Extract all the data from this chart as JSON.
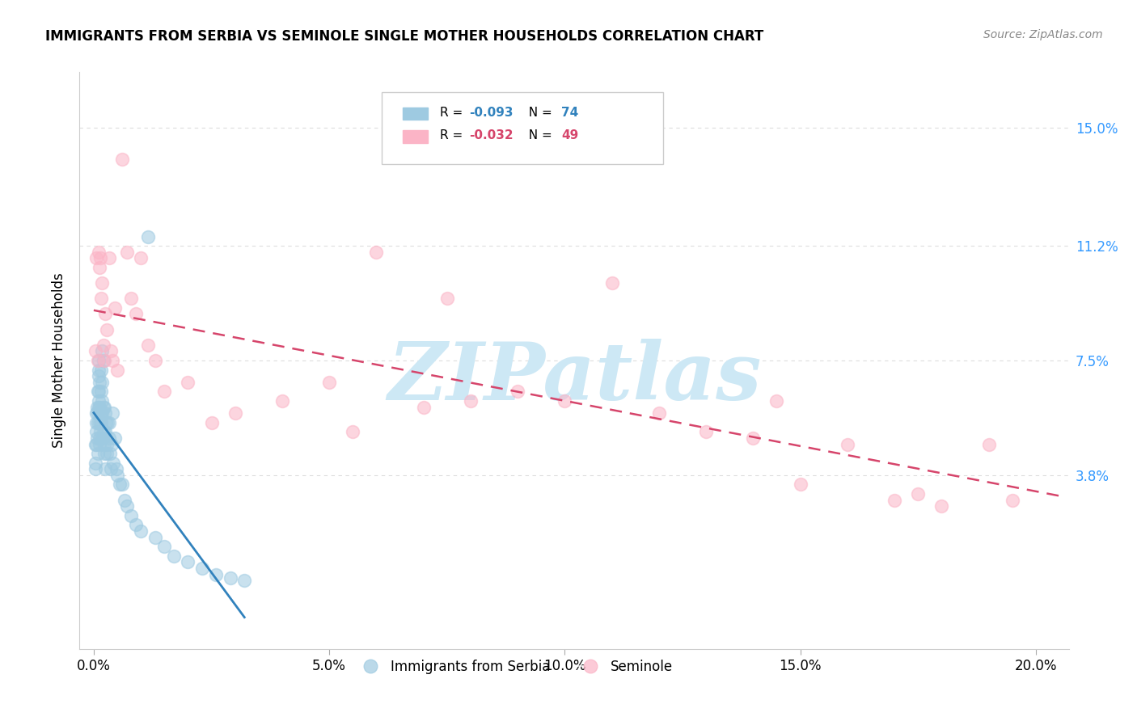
{
  "title": "IMMIGRANTS FROM SERBIA VS SEMINOLE SINGLE MOTHER HOUSEHOLDS CORRELATION CHART",
  "source": "Source: ZipAtlas.com",
  "ylabel": "Single Mother Households",
  "xlabel_ticks": [
    "0.0%",
    "5.0%",
    "10.0%",
    "15.0%",
    "20.0%"
  ],
  "xlabel_vals": [
    0.0,
    0.05,
    0.1,
    0.15,
    0.2
  ],
  "ylabel_ticks": [
    "3.8%",
    "7.5%",
    "11.2%",
    "15.0%"
  ],
  "ylabel_vals": [
    0.038,
    0.075,
    0.112,
    0.15
  ],
  "ylim": [
    -0.018,
    0.168
  ],
  "xlim": [
    -0.003,
    0.207
  ],
  "legend1_label": "Immigrants from Serbia",
  "legend2_label": "Seminole",
  "R1": "-0.093",
  "N1": "74",
  "R2": "-0.032",
  "N2": "49",
  "serbia_color": "#9ecae1",
  "seminole_color": "#fbb4c6",
  "serbia_line_color": "#3182bd",
  "seminole_line_color": "#d6456b",
  "serbia_x": [
    0.0003,
    0.0003,
    0.0004,
    0.0005,
    0.0005,
    0.0006,
    0.0006,
    0.0007,
    0.0007,
    0.0008,
    0.0008,
    0.0009,
    0.0009,
    0.001,
    0.001,
    0.001,
    0.001,
    0.0011,
    0.0011,
    0.0012,
    0.0012,
    0.0013,
    0.0013,
    0.0013,
    0.0014,
    0.0014,
    0.0015,
    0.0015,
    0.0015,
    0.0016,
    0.0017,
    0.0017,
    0.0018,
    0.0018,
    0.0019,
    0.002,
    0.002,
    0.0021,
    0.0022,
    0.0023,
    0.0023,
    0.0024,
    0.0025,
    0.0025,
    0.0026,
    0.0027,
    0.0028,
    0.003,
    0.0032,
    0.0033,
    0.0035,
    0.0036,
    0.0038,
    0.004,
    0.0042,
    0.0045,
    0.0048,
    0.005,
    0.0055,
    0.006,
    0.0065,
    0.007,
    0.008,
    0.009,
    0.01,
    0.0115,
    0.013,
    0.015,
    0.017,
    0.02,
    0.023,
    0.026,
    0.029,
    0.032
  ],
  "serbia_y": [
    0.048,
    0.042,
    0.04,
    0.058,
    0.055,
    0.052,
    0.048,
    0.06,
    0.05,
    0.065,
    0.058,
    0.045,
    0.055,
    0.075,
    0.07,
    0.065,
    0.06,
    0.072,
    0.062,
    0.055,
    0.05,
    0.068,
    0.06,
    0.048,
    0.058,
    0.052,
    0.072,
    0.065,
    0.055,
    0.058,
    0.078,
    0.062,
    0.068,
    0.058,
    0.05,
    0.075,
    0.06,
    0.052,
    0.06,
    0.048,
    0.045,
    0.058,
    0.052,
    0.04,
    0.055,
    0.048,
    0.045,
    0.055,
    0.05,
    0.055,
    0.045,
    0.04,
    0.048,
    0.058,
    0.042,
    0.05,
    0.04,
    0.038,
    0.035,
    0.035,
    0.03,
    0.028,
    0.025,
    0.022,
    0.02,
    0.115,
    0.018,
    0.015,
    0.012,
    0.01,
    0.008,
    0.006,
    0.005,
    0.004
  ],
  "seminole_x": [
    0.0003,
    0.0005,
    0.0008,
    0.001,
    0.0012,
    0.0014,
    0.0016,
    0.0018,
    0.002,
    0.0022,
    0.0025,
    0.0028,
    0.0032,
    0.0036,
    0.004,
    0.0045,
    0.005,
    0.006,
    0.007,
    0.008,
    0.009,
    0.01,
    0.0115,
    0.013,
    0.015,
    0.02,
    0.025,
    0.03,
    0.04,
    0.05,
    0.055,
    0.06,
    0.07,
    0.075,
    0.08,
    0.09,
    0.1,
    0.11,
    0.12,
    0.13,
    0.14,
    0.145,
    0.15,
    0.16,
    0.17,
    0.175,
    0.18,
    0.19,
    0.195
  ],
  "seminole_y": [
    0.078,
    0.108,
    0.075,
    0.11,
    0.105,
    0.108,
    0.095,
    0.1,
    0.08,
    0.075,
    0.09,
    0.085,
    0.108,
    0.078,
    0.075,
    0.092,
    0.072,
    0.14,
    0.11,
    0.095,
    0.09,
    0.108,
    0.08,
    0.075,
    0.065,
    0.068,
    0.055,
    0.058,
    0.062,
    0.068,
    0.052,
    0.11,
    0.06,
    0.095,
    0.062,
    0.065,
    0.062,
    0.1,
    0.058,
    0.052,
    0.05,
    0.062,
    0.035,
    0.048,
    0.03,
    0.032,
    0.028,
    0.048,
    0.03
  ],
  "background_color": "#ffffff",
  "grid_color": "#dddddd",
  "watermark": "ZIPatlas",
  "watermark_color": "#cde8f5"
}
